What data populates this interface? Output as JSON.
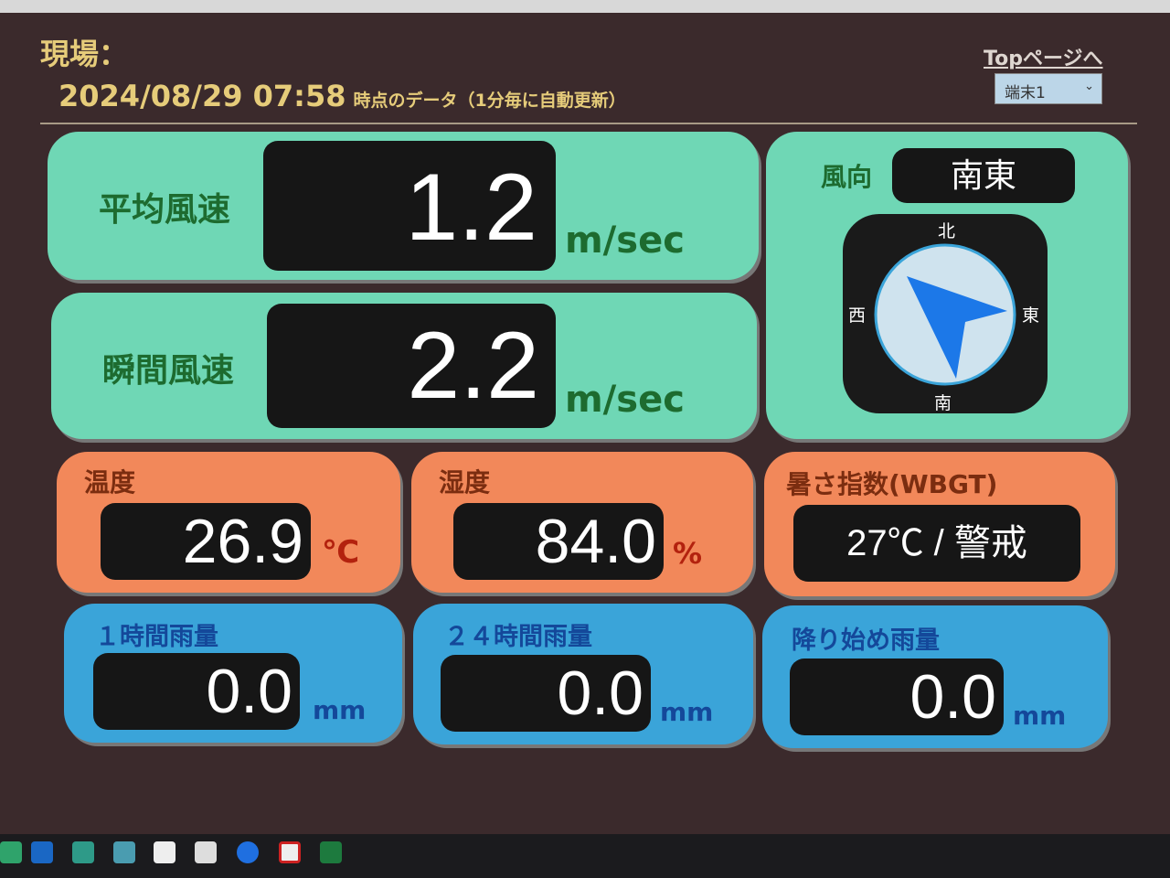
{
  "header": {
    "site_label": "現場：",
    "datetime": "2024/08/29 07:58",
    "datetime_suffix": "時点のデータ（1分毎に自動更新）",
    "top_link": "Topページへ",
    "terminal_select": "端末1"
  },
  "avg_wind": {
    "label": "平均風速",
    "value": "1.2",
    "unit": "m/sec"
  },
  "gust_wind": {
    "label": "瞬間風速",
    "value": "2.2",
    "unit": "m/sec"
  },
  "wind_dir": {
    "label": "風向",
    "value": "南東",
    "north": "北",
    "south": "南",
    "east": "東",
    "west": "西"
  },
  "temperature": {
    "label": "温度",
    "value": "26.9",
    "unit": "℃"
  },
  "humidity": {
    "label": "湿度",
    "value": "84.0",
    "unit": "%"
  },
  "wbgt": {
    "label": "暑さ指数(WBGT)",
    "value": "27℃ / 警戒"
  },
  "rain_1h": {
    "label": "１時間雨量",
    "value": "0.0",
    "unit": "mm"
  },
  "rain_24h": {
    "label": "２４時間雨量",
    "value": "0.0",
    "unit": "mm"
  },
  "rain_total": {
    "label": "降り始め雨量",
    "value": "0.0",
    "unit": "mm"
  },
  "taskbar": [
    "app-icon",
    "outlook-icon",
    "publisher-icon",
    "app-cube-icon",
    "acrobat-icon",
    "dwg-icon",
    "zoom-icon",
    "app-red-icon",
    "excel-icon"
  ],
  "colors": {
    "green_panel": "#6fd7b5",
    "orange_panel": "#f2885a",
    "blue_panel": "#3aa4d9",
    "header_text": "#e6cc7a",
    "arrow": "#1c78e8"
  }
}
